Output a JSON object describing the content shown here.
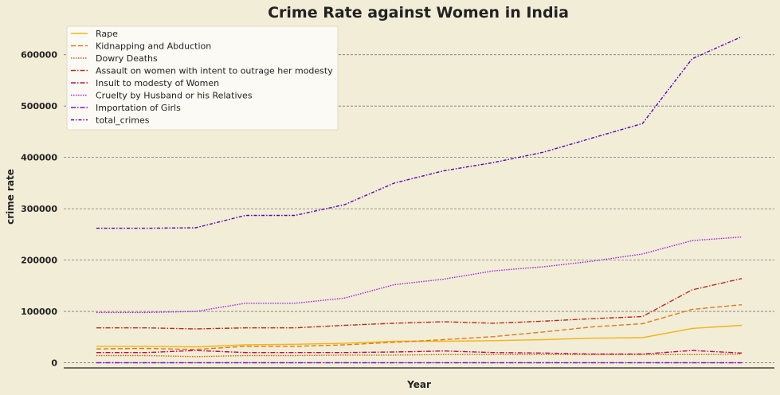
{
  "chart_data": {
    "type": "line",
    "title": "Crime Rate against Women in India",
    "xlabel": "Year",
    "ylabel": "crime rate",
    "ylim": [
      -10000,
      660000
    ],
    "yticks": [
      0,
      100000,
      200000,
      300000,
      400000,
      500000,
      600000
    ],
    "x": [
      0,
      1,
      2,
      3,
      4,
      5,
      6,
      7,
      8,
      9,
      10,
      11,
      12,
      13
    ],
    "grid": "horizontal dashed",
    "legend_position": "top-left",
    "series": [
      {
        "name": "Rape",
        "color": "#f5b317",
        "dash": "solid",
        "values": [
          32000,
          32000,
          31000,
          35000,
          36000,
          38000,
          42000,
          42000,
          43000,
          45000,
          48000,
          49000,
          67000,
          73000
        ]
      },
      {
        "name": "Kidnapping and Abduction",
        "color": "#e07a16",
        "dash": "dashed",
        "values": [
          27000,
          28000,
          26000,
          32000,
          32000,
          35000,
          40000,
          45000,
          51000,
          60000,
          70000,
          76000,
          104000,
          113000
        ]
      },
      {
        "name": "Dowry Deaths",
        "color": "#d85a1a",
        "dash": "dotted",
        "values": [
          14000,
          14000,
          12000,
          14000,
          14000,
          15000,
          15000,
          16000,
          16000,
          16000,
          16000,
          16000,
          16000,
          17000
        ]
      },
      {
        "name": "Assault on women with intent to outrage her modesty",
        "color": "#c0281c",
        "dash": "dashdot",
        "values": [
          68000,
          68000,
          66000,
          68000,
          68000,
          73000,
          77000,
          80000,
          77000,
          81000,
          86000,
          90000,
          142000,
          164000
        ]
      },
      {
        "name": "Insult to modesty of Women",
        "color": "#b5124a",
        "dash": "dashdot",
        "values": [
          20000,
          20000,
          24000,
          20000,
          20000,
          20000,
          21000,
          23000,
          20000,
          19000,
          17000,
          17000,
          24000,
          19000
        ]
      },
      {
        "name": "Cruelty by Husband or his Relatives",
        "color": "#a020e8",
        "dash": "dotted",
        "values": [
          98000,
          98000,
          100000,
          116000,
          116000,
          126000,
          152000,
          163000,
          179000,
          187000,
          198000,
          212000,
          238000,
          245000
        ]
      },
      {
        "name": "Importation of Girls",
        "color": "#7a10e0",
        "dash": "dashdot",
        "values": [
          100,
          100,
          100,
          100,
          100,
          100,
          100,
          100,
          100,
          100,
          100,
          100,
          100,
          100
        ]
      },
      {
        "name": "total_crimes",
        "color": "#5a00b8",
        "dash": "dashdot2",
        "values": [
          262000,
          262000,
          263000,
          287000,
          287000,
          308000,
          350000,
          374000,
          390000,
          410000,
          438000,
          466000,
          592000,
          635000
        ]
      }
    ]
  }
}
